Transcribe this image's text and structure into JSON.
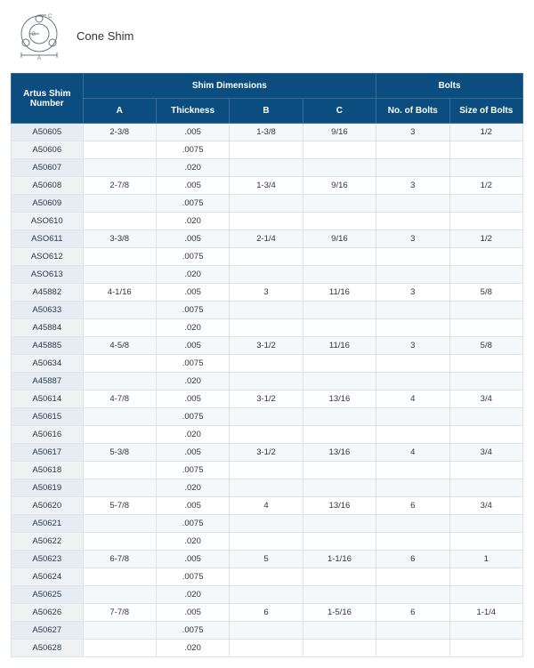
{
  "diagram": {
    "label": "Cone Shim",
    "letters": {
      "A": "A",
      "B": "B",
      "C": "C"
    }
  },
  "table": {
    "header": {
      "shim_number": "Artus Shim Number",
      "shim_dims": "Shim Dimensions",
      "bolts": "Bolts",
      "A": "A",
      "thickness": "Thickness",
      "B": "B",
      "C": "C",
      "no_bolts": "No. of Bolts",
      "size_bolts": "Size of Bolts"
    },
    "colors": {
      "header_bg": "#0c4d7f",
      "header_border": "#3a6b95",
      "shim_col_bg": "#eef2f5",
      "row_odd_bg": "#f5f8fa",
      "row_even_bg": "#ffffff",
      "cell_border": "#dde3e8"
    },
    "rows": [
      {
        "n": "A50605",
        "A": "2-3/8",
        "t": ".005",
        "B": "1-3/8",
        "C": "9/16",
        "nb": "3",
        "sb": "1/2"
      },
      {
        "n": "A50606",
        "A": "",
        "t": ".0075",
        "B": "",
        "C": "",
        "nb": "",
        "sb": ""
      },
      {
        "n": "A50607",
        "A": "",
        "t": ".020",
        "B": "",
        "C": "",
        "nb": "",
        "sb": ""
      },
      {
        "n": "A50608",
        "A": "2-7/8",
        "t": ".005",
        "B": "1-3/4",
        "C": "9/16",
        "nb": "3",
        "sb": "1/2"
      },
      {
        "n": "A50609",
        "A": "",
        "t": ".0075",
        "B": "",
        "C": "",
        "nb": "",
        "sb": ""
      },
      {
        "n": "ASO610",
        "A": "",
        "t": ".020",
        "B": "",
        "C": "",
        "nb": "",
        "sb": ""
      },
      {
        "n": "ASO611",
        "A": "3-3/8",
        "t": ".005",
        "B": "2-1/4",
        "C": "9/16",
        "nb": "3",
        "sb": "1/2"
      },
      {
        "n": "ASO612",
        "A": "",
        "t": ".0075",
        "B": "",
        "C": "",
        "nb": "",
        "sb": ""
      },
      {
        "n": "ASO613",
        "A": "",
        "t": ".020",
        "B": "",
        "C": "",
        "nb": "",
        "sb": ""
      },
      {
        "n": "A45882",
        "A": "4-1/16",
        "t": ".005",
        "B": "3",
        "C": "11/16",
        "nb": "3",
        "sb": "5/8"
      },
      {
        "n": "A50633",
        "A": "",
        "t": ".0075",
        "B": "",
        "C": "",
        "nb": "",
        "sb": ""
      },
      {
        "n": "A45884",
        "A": "",
        "t": ".020",
        "B": "",
        "C": "",
        "nb": "",
        "sb": ""
      },
      {
        "n": "A45885",
        "A": "4-5/8",
        "t": ".005",
        "B": "3-1/2",
        "C": "11/16",
        "nb": "3",
        "sb": "5/8"
      },
      {
        "n": "A50634",
        "A": "",
        "t": ".0075",
        "B": "",
        "C": "",
        "nb": "",
        "sb": ""
      },
      {
        "n": "A45887",
        "A": "",
        "t": ".020",
        "B": "",
        "C": "",
        "nb": "",
        "sb": ""
      },
      {
        "n": "A50614",
        "A": "4-7/8",
        "t": ".005",
        "B": "3-1/2",
        "C": "13/16",
        "nb": "4",
        "sb": "3/4"
      },
      {
        "n": "A50615",
        "A": "",
        "t": ".0075",
        "B": "",
        "C": "",
        "nb": "",
        "sb": ""
      },
      {
        "n": "A50616",
        "A": "",
        "t": ".020",
        "B": "",
        "C": "",
        "nb": "",
        "sb": ""
      },
      {
        "n": "A50617",
        "A": "5-3/8",
        "t": ".005",
        "B": "3-1/2",
        "C": "13/16",
        "nb": "4",
        "sb": "3/4"
      },
      {
        "n": "A50618",
        "A": "",
        "t": ".0075",
        "B": "",
        "C": "",
        "nb": "",
        "sb": ""
      },
      {
        "n": "A50619",
        "A": "",
        "t": ".020",
        "B": "",
        "C": "",
        "nb": "",
        "sb": ""
      },
      {
        "n": "A50620",
        "A": "5-7/8",
        "t": ".005",
        "B": "4",
        "C": "13/16",
        "nb": "6",
        "sb": "3/4"
      },
      {
        "n": "A50621",
        "A": "",
        "t": ".0075",
        "B": "",
        "C": "",
        "nb": "",
        "sb": ""
      },
      {
        "n": "A50622",
        "A": "",
        "t": ".020",
        "B": "",
        "C": "",
        "nb": "",
        "sb": ""
      },
      {
        "n": "A50623",
        "A": "6-7/8",
        "t": ".005",
        "B": "5",
        "C": "1-1/16",
        "nb": "6",
        "sb": "1"
      },
      {
        "n": "A50624",
        "A": "",
        "t": ".0075",
        "B": "",
        "C": "",
        "nb": "",
        "sb": ""
      },
      {
        "n": "A50625",
        "A": "",
        "t": ".020",
        "B": "",
        "C": "",
        "nb": "",
        "sb": ""
      },
      {
        "n": "A50626",
        "A": "7-7/8",
        "t": ".005",
        "B": "6",
        "C": "1-5/16",
        "nb": "6",
        "sb": "1-1/4"
      },
      {
        "n": "A50627",
        "A": "",
        "t": ".0075",
        "B": "",
        "C": "",
        "nb": "",
        "sb": ""
      },
      {
        "n": "A50628",
        "A": "",
        "t": ".020",
        "B": "",
        "C": "",
        "nb": "",
        "sb": ""
      }
    ]
  }
}
